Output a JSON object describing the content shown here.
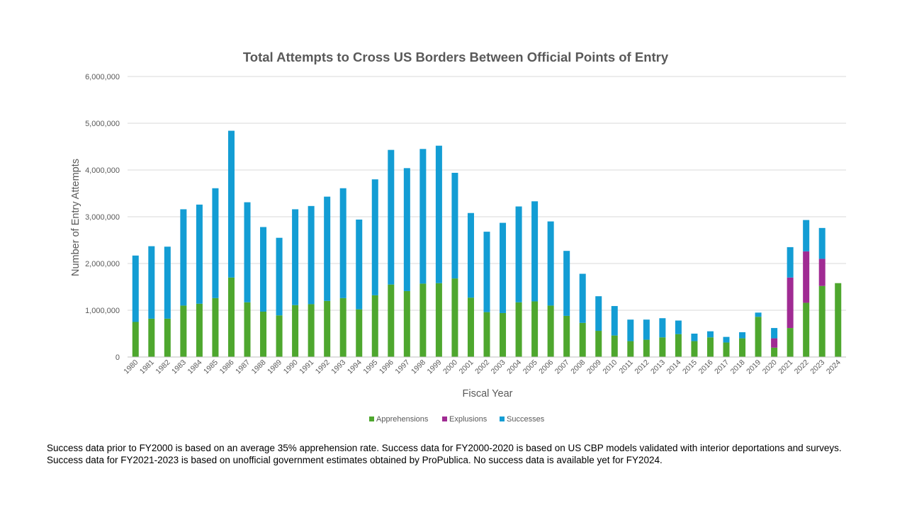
{
  "chart_data": {
    "type": "bar",
    "stacked": true,
    "title": "Total Attempts to Cross US Borders Between Official Points of Entry",
    "xlabel": "Fiscal Year",
    "ylabel": "Number of Entry Attempts",
    "ylim": [
      0,
      6000000
    ],
    "yticks": [
      0,
      1000000,
      2000000,
      3000000,
      4000000,
      5000000,
      6000000
    ],
    "ytick_labels": [
      "0",
      "1,000,000",
      "2,000,000",
      "3,000,000",
      "4,000,000",
      "5,000,000",
      "6,000,000"
    ],
    "grid": "horizontal",
    "legend_position": "bottom",
    "categories": [
      "1980",
      "1981",
      "1982",
      "1983",
      "1984",
      "1985",
      "1986",
      "1987",
      "1988",
      "1989",
      "1990",
      "1991",
      "1992",
      "1993",
      "1994",
      "1995",
      "1996",
      "1997",
      "1998",
      "1999",
      "2000",
      "2001",
      "2002",
      "2003",
      "2004",
      "2005",
      "2006",
      "2007",
      "2008",
      "2009",
      "2010",
      "2011",
      "2012",
      "2013",
      "2014",
      "2015",
      "2016",
      "2017",
      "2018",
      "2019",
      "2020",
      "2021",
      "2022",
      "2023",
      "2024"
    ],
    "series": [
      {
        "name": "Apprehensions",
        "color": "#4ea72e",
        "values": [
          750000,
          820000,
          820000,
          1100000,
          1140000,
          1260000,
          1700000,
          1170000,
          970000,
          890000,
          1110000,
          1130000,
          1200000,
          1260000,
          1020000,
          1320000,
          1550000,
          1410000,
          1570000,
          1580000,
          1680000,
          1270000,
          960000,
          940000,
          1170000,
          1190000,
          1100000,
          880000,
          730000,
          560000,
          460000,
          340000,
          370000,
          420000,
          490000,
          340000,
          420000,
          310000,
          400000,
          860000,
          200000,
          620000,
          1160000,
          1520000,
          1580000
        ]
      },
      {
        "name": "Explusions",
        "color": "#a02b93",
        "values": [
          0,
          0,
          0,
          0,
          0,
          0,
          0,
          0,
          0,
          0,
          0,
          0,
          0,
          0,
          0,
          0,
          0,
          0,
          0,
          0,
          0,
          0,
          0,
          0,
          0,
          0,
          0,
          0,
          0,
          0,
          0,
          0,
          0,
          0,
          0,
          0,
          0,
          0,
          0,
          0,
          200000,
          1080000,
          1100000,
          580000,
          0
        ]
      },
      {
        "name": "Successes",
        "color": "#139dd4",
        "values": [
          1420000,
          1550000,
          1540000,
          2060000,
          2120000,
          2350000,
          3140000,
          2140000,
          1810000,
          1660000,
          2050000,
          2100000,
          2230000,
          2350000,
          1920000,
          2480000,
          2880000,
          2630000,
          2880000,
          2940000,
          2260000,
          1810000,
          1720000,
          1930000,
          2050000,
          2140000,
          1800000,
          1390000,
          1050000,
          740000,
          630000,
          460000,
          430000,
          410000,
          290000,
          160000,
          130000,
          120000,
          130000,
          90000,
          220000,
          650000,
          670000,
          660000,
          0
        ]
      }
    ]
  },
  "footnote": {
    "line1": "Success data prior to FY2000 is based on an average 35% apprehension rate.  Success data for FY2000-2020 is based on US CBP models validated with interior deportations and surveys.",
    "line2": "Success data for FY2021-2023 is based on unofficial government estimates obtained by ProPublica. No success data is available yet for FY2024."
  },
  "colors": {
    "gridline": "#d9d9d9",
    "axis_text": "#595959",
    "title_text": "#595959"
  }
}
